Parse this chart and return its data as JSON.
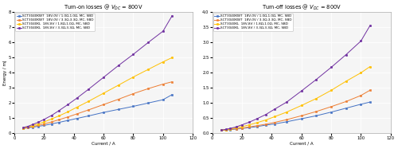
{
  "title_left": "Turn-on losses @ $V_{DC}$ = 800V",
  "title_right": "Turn-off losses @ $V_{DC}$ = 800V",
  "xlabel": "Current / A",
  "ylabel": "Energy / mJ",
  "xlim": [
    0,
    120
  ],
  "ylim_left": [
    0,
    8
  ],
  "ylim_right": [
    0,
    4
  ],
  "xticks": [
    0,
    20,
    40,
    60,
    80,
    100,
    120
  ],
  "yticks_left": [
    0,
    1,
    2,
    3,
    4,
    5,
    6,
    7,
    8
  ],
  "yticks_right": [
    0,
    0.5,
    1.0,
    1.5,
    2.0,
    2.5,
    3.0,
    3.5,
    4.0
  ],
  "currents": [
    6,
    9,
    12,
    16,
    20,
    25,
    30,
    36,
    42,
    50,
    60,
    70,
    80,
    90,
    100,
    106
  ],
  "series": [
    {
      "label": "SCT3040KW7  18V,0V / 1.0Ω,1.0Ω, MC, SBD",
      "color": "#4472c4",
      "marker": "s",
      "eon": [
        0.32,
        0.36,
        0.4,
        0.46,
        0.52,
        0.62,
        0.72,
        0.85,
        0.98,
        1.15,
        1.38,
        1.58,
        1.78,
        2.0,
        2.22,
        2.55
      ],
      "eoff": [
        0.1,
        0.11,
        0.12,
        0.14,
        0.16,
        0.19,
        0.22,
        0.27,
        0.31,
        0.38,
        0.48,
        0.58,
        0.7,
        0.83,
        0.96,
        1.03
      ]
    },
    {
      "label": "SCT3040KW7  18V,0V / 3.3Ω,3.3Ω, MC, SBD",
      "color": "#ed7d31",
      "marker": "s",
      "eon": [
        0.33,
        0.38,
        0.44,
        0.52,
        0.62,
        0.75,
        0.9,
        1.08,
        1.28,
        1.55,
        1.9,
        2.25,
        2.62,
        2.95,
        3.25,
        3.4
      ],
      "eoff": [
        0.1,
        0.11,
        0.13,
        0.15,
        0.17,
        0.21,
        0.25,
        0.3,
        0.36,
        0.45,
        0.58,
        0.72,
        0.88,
        1.05,
        1.25,
        1.42
      ]
    },
    {
      "label": "SCT3040KL  18V,8V / 1.8Ω,1.0Ω, MC, SBD",
      "color": "#ffc000",
      "marker": "o",
      "eon": [
        0.35,
        0.42,
        0.5,
        0.62,
        0.75,
        0.95,
        1.15,
        1.42,
        1.72,
        2.12,
        2.65,
        3.18,
        3.72,
        4.22,
        4.72,
        5.0
      ],
      "eoff": [
        0.1,
        0.12,
        0.14,
        0.18,
        0.22,
        0.28,
        0.35,
        0.44,
        0.55,
        0.7,
        0.92,
        1.15,
        1.42,
        1.72,
        2.0,
        2.2
      ]
    },
    {
      "label": "SCT3040KL  18V,8V / 3.3Ω,3.3Ω, MC, SBD",
      "color": "#7030a0",
      "marker": "o",
      "eon": [
        0.38,
        0.46,
        0.57,
        0.73,
        0.92,
        1.18,
        1.5,
        1.9,
        2.32,
        2.92,
        3.7,
        4.48,
        5.22,
        6.0,
        6.75,
        7.75
      ],
      "eoff": [
        0.1,
        0.13,
        0.16,
        0.21,
        0.28,
        0.37,
        0.48,
        0.62,
        0.8,
        1.03,
        1.4,
        1.78,
        2.18,
        2.6,
        3.05,
        3.55
      ]
    }
  ],
  "bg_color": "#f5f5f5",
  "grid_color": "#ffffff",
  "title_fontsize": 4.8,
  "label_fontsize": 4.0,
  "tick_fontsize": 3.8,
  "legend_fontsize": 3.0,
  "linewidth": 0.7,
  "markersize": 1.8
}
